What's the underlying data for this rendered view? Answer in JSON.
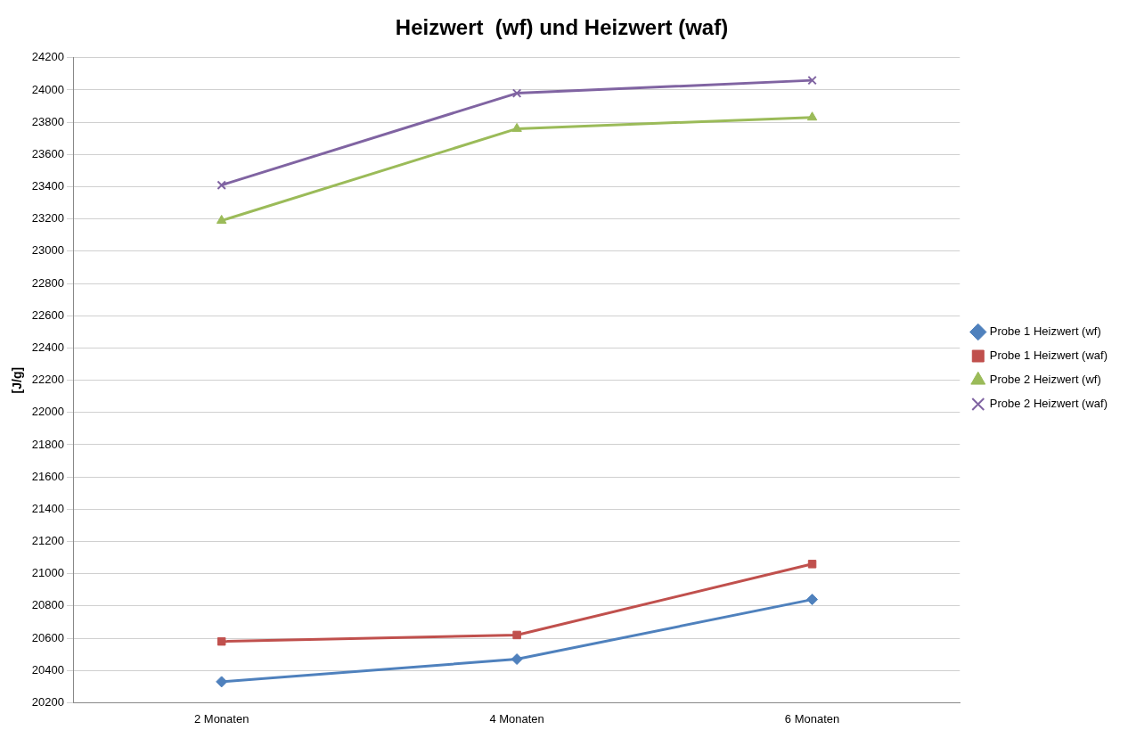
{
  "chart_data": {
    "type": "line",
    "title": "Heizwert  (wf) und Heizwert (waf)",
    "ylabel": "[J/g]",
    "categories": [
      "2 Monaten",
      "4 Monaten",
      "6 Monaten"
    ],
    "series": [
      {
        "name": "Probe 1 Heizwert (wf)",
        "color": "#4f81bd",
        "marker": "diamond",
        "values": [
          20330,
          20470,
          20840
        ]
      },
      {
        "name": "Probe 1 Heizwert (waf)",
        "color": "#c0504d",
        "marker": "square",
        "values": [
          20580,
          20620,
          21060
        ]
      },
      {
        "name": "Probe 2 Heizwert (wf)",
        "color": "#9bbb59",
        "marker": "triangle",
        "values": [
          23190,
          23760,
          23830
        ]
      },
      {
        "name": "Probe 2 Heizwert (waf)",
        "color": "#8064a2",
        "marker": "cross",
        "values": [
          23410,
          23980,
          24060
        ]
      }
    ],
    "ylim": [
      20200,
      24200
    ],
    "yticks": [
      20200,
      20400,
      20600,
      20800,
      21000,
      21200,
      21400,
      21600,
      21800,
      22000,
      22200,
      22400,
      22600,
      22800,
      23000,
      23200,
      23400,
      23600,
      23800,
      24000,
      24200
    ],
    "grid": "y",
    "legend": "right",
    "line_style": "solid"
  }
}
